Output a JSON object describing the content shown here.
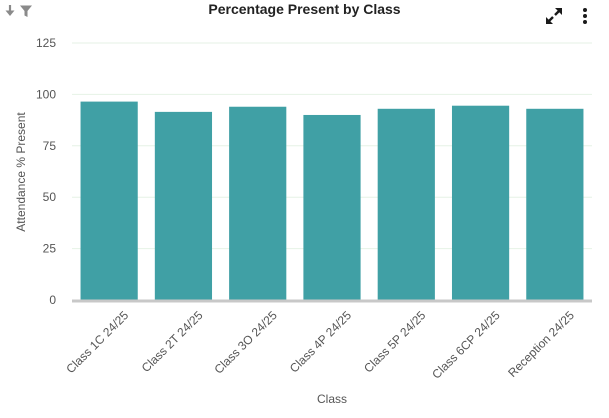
{
  "widget": {
    "title": "Percentage Present by Class",
    "icons": {
      "sort": "sort-down-arrow-icon",
      "filter": "filter-funnel-icon",
      "expand": "expand-arrows-icon",
      "menu": "vertical-ellipsis-icon"
    }
  },
  "chart_data": {
    "type": "bar",
    "title": "Percentage Present by Class",
    "xlabel": "Class",
    "ylabel": "Attendance % Present",
    "categories": [
      "Class 1C 24/25",
      "Class 2T 24/25",
      "Class 3O 24/25",
      "Class 4P 24/25",
      "Class 5P 24/25",
      "Class 6CP 24/25",
      "Reception 24/25"
    ],
    "values": [
      96.5,
      91.5,
      94,
      90,
      93,
      94.5,
      93
    ],
    "ylim": [
      0,
      125
    ],
    "yticks": [
      0,
      25,
      50,
      75,
      100,
      125
    ],
    "grid": true,
    "legend": "none",
    "bar_color": "#40a0a5",
    "grid_color": "#e6f2e6",
    "axis_color": "#c8c8c8"
  }
}
